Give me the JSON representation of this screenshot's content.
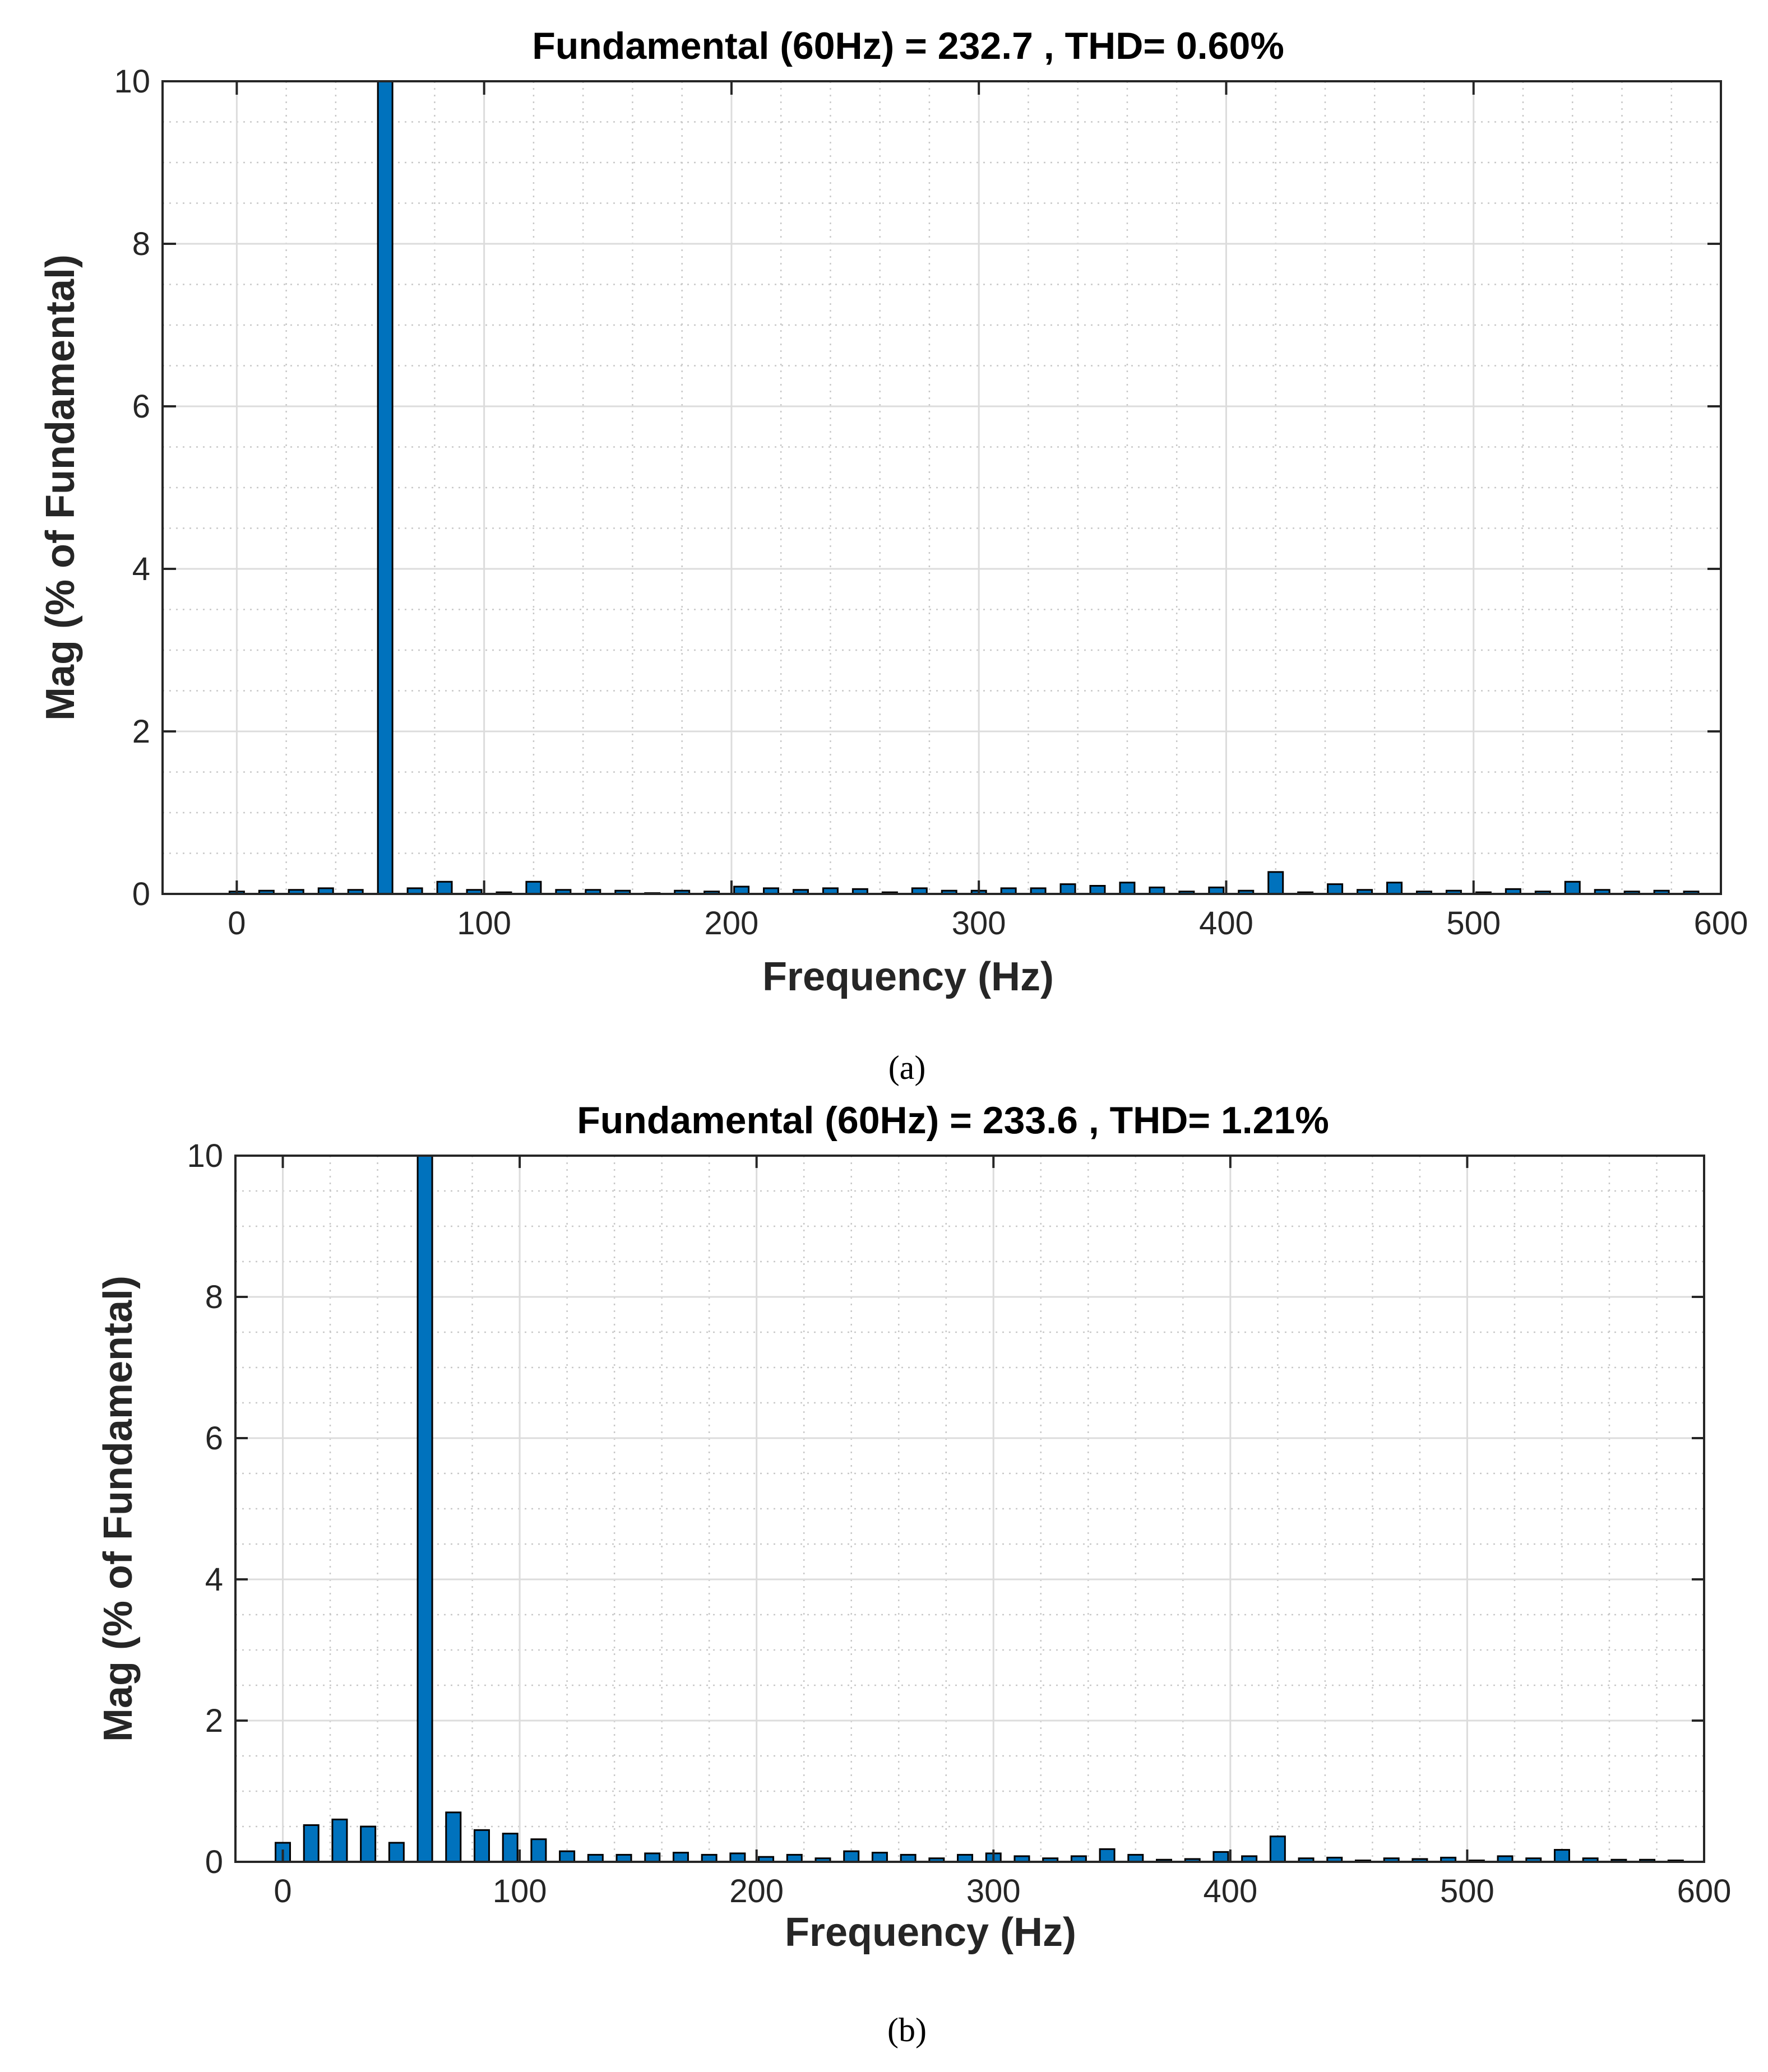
{
  "chart_data": [
    {
      "type": "bar",
      "title": "Fundamental (60Hz) = 232.7 , THD= 0.60%",
      "xlabel": "Frequency (Hz)",
      "ylabel": "Mag (% of Fundamental)",
      "caption": "(a)",
      "xlim": [
        -30,
        600
      ],
      "ylim": [
        0,
        10
      ],
      "xticks": [
        0,
        100,
        200,
        300,
        400,
        500,
        600
      ],
      "yticks": [
        0,
        2,
        4,
        6,
        8,
        10
      ],
      "xtick_labels": [
        "0",
        "100",
        "200",
        "300",
        "400",
        "500",
        "600"
      ],
      "ytick_labels": [
        "0",
        "2",
        "4",
        "6",
        "8",
        "10"
      ],
      "grid": "major solid, minor dotted",
      "bar_color": "#0072BD",
      "x": [
        0,
        12,
        24,
        36,
        48,
        60,
        72,
        84,
        96,
        108,
        120,
        132,
        144,
        156,
        168,
        180,
        192,
        204,
        216,
        228,
        240,
        252,
        264,
        276,
        288,
        300,
        312,
        324,
        336,
        348,
        360,
        372,
        384,
        396,
        408,
        420,
        432,
        444,
        456,
        468,
        480,
        492,
        504,
        516,
        528,
        540,
        552,
        564,
        576,
        588
      ],
      "values": [
        0.03,
        0.04,
        0.05,
        0.07,
        0.05,
        10,
        0.07,
        0.15,
        0.05,
        0.02,
        0.15,
        0.05,
        0.05,
        0.04,
        0.01,
        0.04,
        0.03,
        0.09,
        0.07,
        0.05,
        0.07,
        0.06,
        0.02,
        0.07,
        0.04,
        0.04,
        0.07,
        0.07,
        0.12,
        0.1,
        0.14,
        0.08,
        0.03,
        0.08,
        0.04,
        0.27,
        0.02,
        0.12,
        0.05,
        0.14,
        0.03,
        0.04,
        0.02,
        0.06,
        0.03,
        0.15,
        0.05,
        0.03,
        0.04,
        0.03
      ]
    },
    {
      "type": "bar",
      "title": "Fundamental (60Hz) = 233.6 , THD= 1.21%",
      "xlabel": "Frequency (Hz)",
      "ylabel": "Mag (% of Fundamental)",
      "caption": "(b)",
      "xlim": [
        -20,
        600
      ],
      "ylim": [
        0,
        10
      ],
      "xticks": [
        0,
        100,
        200,
        300,
        400,
        500,
        600
      ],
      "yticks": [
        0,
        2,
        4,
        6,
        8,
        10
      ],
      "xtick_labels": [
        "0",
        "100",
        "200",
        "300",
        "400",
        "500",
        "600"
      ],
      "ytick_labels": [
        "0",
        "2",
        "4",
        "6",
        "8",
        "10"
      ],
      "grid": "major solid, minor dotted",
      "bar_color": "#0072BD",
      "x": [
        0,
        12,
        24,
        36,
        48,
        60,
        72,
        84,
        96,
        108,
        120,
        132,
        144,
        156,
        168,
        180,
        192,
        204,
        216,
        228,
        240,
        252,
        264,
        276,
        288,
        300,
        312,
        324,
        336,
        348,
        360,
        372,
        384,
        396,
        408,
        420,
        432,
        444,
        456,
        468,
        480,
        492,
        504,
        516,
        528,
        540,
        552,
        564,
        576,
        588
      ],
      "values": [
        0.27,
        0.52,
        0.6,
        0.5,
        0.27,
        10,
        0.7,
        0.45,
        0.4,
        0.32,
        0.15,
        0.1,
        0.1,
        0.12,
        0.13,
        0.1,
        0.12,
        0.07,
        0.1,
        0.05,
        0.15,
        0.13,
        0.1,
        0.05,
        0.1,
        0.12,
        0.08,
        0.05,
        0.08,
        0.18,
        0.1,
        0.03,
        0.04,
        0.14,
        0.08,
        0.36,
        0.05,
        0.06,
        0.02,
        0.05,
        0.04,
        0.06,
        0.02,
        0.08,
        0.05,
        0.17,
        0.05,
        0.03,
        0.03,
        0.02
      ]
    }
  ]
}
